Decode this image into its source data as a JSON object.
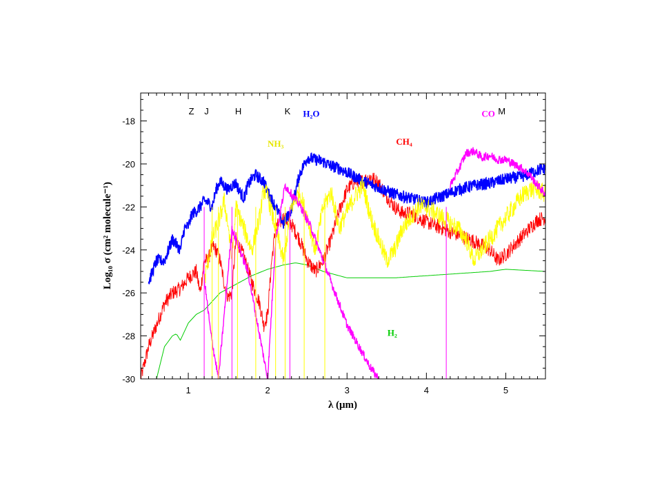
{
  "chart_data": {
    "type": "line",
    "title": "",
    "xlabel": "λ (μm)",
    "ylabel": "Log₁₀ σ (cm² molecule⁻¹)",
    "xlim": [
      0.4,
      5.5
    ],
    "ylim": [
      -30,
      -16.7
    ],
    "grid": false,
    "legend": "none",
    "x_ticks": [
      1,
      2,
      3,
      4,
      5
    ],
    "y_ticks": [
      -30,
      -28,
      -26,
      -24,
      -22,
      -20,
      -18
    ],
    "band_labels": [
      {
        "text": "Z",
        "x": 1.04
      },
      {
        "text": "J",
        "x": 1.23
      },
      {
        "text": "H",
        "x": 1.63
      },
      {
        "text": "K",
        "x": 2.25
      },
      {
        "text": "M",
        "x": 4.95
      }
    ],
    "series": [
      {
        "name": "H₂O",
        "color": "#0000ff",
        "label_x": 2.55,
        "label_y": -17.8,
        "x": [
          0.5,
          0.6,
          0.7,
          0.8,
          0.9,
          0.95,
          1.0,
          1.05,
          1.1,
          1.15,
          1.2,
          1.25,
          1.3,
          1.35,
          1.4,
          1.45,
          1.5,
          1.55,
          1.6,
          1.65,
          1.7,
          1.75,
          1.8,
          1.85,
          1.9,
          1.95,
          2.0,
          2.1,
          2.2,
          2.3,
          2.4,
          2.5,
          2.6,
          2.7,
          2.8,
          2.9,
          3.0,
          3.2,
          3.4,
          3.6,
          3.8,
          4.0,
          4.2,
          4.4,
          4.6,
          4.8,
          5.0,
          5.2,
          5.4,
          5.5
        ],
        "y": [
          -25.5,
          -24.5,
          -24.5,
          -23.5,
          -24.0,
          -23.0,
          -22.9,
          -22.3,
          -22.2,
          -22.0,
          -21.7,
          -21.8,
          -22.0,
          -21.2,
          -20.8,
          -21.0,
          -21.2,
          -21.0,
          -20.9,
          -21.3,
          -21.6,
          -21.0,
          -20.7,
          -20.5,
          -20.7,
          -20.8,
          -21.3,
          -22.0,
          -22.8,
          -22.1,
          -20.5,
          -19.7,
          -19.8,
          -19.9,
          -20.1,
          -20.2,
          -20.4,
          -20.8,
          -21.1,
          -21.4,
          -21.6,
          -21.8,
          -21.5,
          -21.2,
          -21.0,
          -20.9,
          -20.7,
          -20.6,
          -20.3,
          -20.2
        ]
      },
      {
        "name": "CH₄",
        "color": "#ff0000",
        "label_x": 3.72,
        "label_y": -19.1,
        "x": [
          0.4,
          0.5,
          0.6,
          0.7,
          0.8,
          0.9,
          1.0,
          1.1,
          1.15,
          1.2,
          1.25,
          1.3,
          1.35,
          1.4,
          1.45,
          1.5,
          1.55,
          1.6,
          1.7,
          1.8,
          1.9,
          1.95,
          2.0,
          2.05,
          2.1,
          2.2,
          2.3,
          2.4,
          2.5,
          2.6,
          2.7,
          2.8,
          2.9,
          3.0,
          3.1,
          3.2,
          3.3,
          3.4,
          3.5,
          3.6,
          3.7,
          3.8,
          3.9,
          4.0,
          4.2,
          4.4,
          4.6,
          4.7,
          4.8,
          4.9,
          5.0,
          5.2,
          5.4,
          5.5
        ],
        "y": [
          -30.0,
          -28.5,
          -27.5,
          -26.5,
          -26.0,
          -25.8,
          -25.3,
          -25.0,
          -26.0,
          -24.5,
          -24.5,
          -23.8,
          -24.0,
          -24.5,
          -25.5,
          -26.2,
          -26.0,
          -23.5,
          -24.3,
          -25.5,
          -26.5,
          -27.5,
          -27.0,
          -24.5,
          -23.0,
          -22.5,
          -22.8,
          -23.5,
          -24.5,
          -25.0,
          -24.5,
          -23.5,
          -22.2,
          -21.2,
          -20.8,
          -20.8,
          -20.6,
          -20.9,
          -21.5,
          -22.0,
          -22.3,
          -22.3,
          -22.5,
          -22.7,
          -23.0,
          -23.3,
          -23.6,
          -23.8,
          -24.0,
          -24.5,
          -24.2,
          -23.4,
          -22.6,
          -22.5
        ]
      },
      {
        "name": "NH₃",
        "color": "#ffff00",
        "label_x": 2.1,
        "label_y": -19.2,
        "x": [
          1.2,
          1.3,
          1.4,
          1.45,
          1.5,
          1.55,
          1.6,
          1.7,
          1.8,
          1.9,
          1.95,
          2.0,
          2.1,
          2.2,
          2.3,
          2.4,
          2.5,
          2.6,
          2.7,
          2.8,
          2.9,
          3.0,
          3.1,
          3.2,
          3.3,
          3.4,
          3.5,
          3.6,
          3.7,
          3.8,
          3.9,
          4.0,
          4.2,
          4.4,
          4.5,
          4.6,
          4.7,
          4.8,
          4.9,
          5.0,
          5.1,
          5.2,
          5.3,
          5.4,
          5.5
        ],
        "y": [
          -25.5,
          -23.5,
          -22.5,
          -21.7,
          -22.8,
          -24.5,
          -22.0,
          -23.0,
          -24.0,
          -22.5,
          -21.2,
          -21.5,
          -23.0,
          -24.5,
          -22.0,
          -21.3,
          -22.5,
          -24.0,
          -22.0,
          -21.3,
          -23.0,
          -22.2,
          -21.5,
          -21.0,
          -22.5,
          -23.5,
          -24.5,
          -24.0,
          -23.0,
          -22.5,
          -22.0,
          -22.0,
          -22.5,
          -23.0,
          -23.5,
          -24.5,
          -24.0,
          -23.5,
          -23.0,
          -22.5,
          -22.0,
          -21.5,
          -21.2,
          -21.2,
          -21.4
        ]
      },
      {
        "name": "CO",
        "color": "#ff00ff",
        "label_x": 4.78,
        "label_y": -17.8,
        "x": [
          1.19,
          1.28,
          1.38,
          1.55,
          1.75,
          1.9,
          2.0,
          2.1,
          2.22,
          2.32,
          2.42,
          2.55,
          2.7,
          2.85,
          3.0,
          3.15,
          3.3,
          3.4,
          4.3,
          4.4,
          4.5,
          4.6,
          4.7,
          4.8,
          4.9,
          5.0,
          5.1,
          5.2,
          5.3,
          5.4,
          5.5
        ],
        "y": [
          -25.0,
          -27.8,
          -30.0,
          -23.0,
          -25.0,
          -28.0,
          -30.0,
          -23.5,
          -21.0,
          -21.5,
          -22.0,
          -23.0,
          -24.5,
          -26.0,
          -27.5,
          -28.5,
          -29.5,
          -30.0,
          -21.0,
          -20.3,
          -19.5,
          -19.4,
          -19.7,
          -19.6,
          -19.8,
          -19.8,
          -20.0,
          -20.2,
          -20.5,
          -21.0,
          -21.4
        ]
      },
      {
        "name": "H₂",
        "color": "#00cc00",
        "label_x": 3.57,
        "label_y": -28.0,
        "x": [
          0.6,
          0.7,
          0.8,
          0.85,
          0.9,
          1.0,
          1.1,
          1.2,
          1.3,
          1.4,
          1.5,
          1.6,
          1.8,
          2.0,
          2.2,
          2.35,
          2.5,
          2.7,
          2.9,
          3.0,
          3.2,
          3.4,
          3.6,
          4.0,
          4.4,
          4.8,
          5.0,
          5.5
        ],
        "y": [
          -30.0,
          -28.5,
          -28.0,
          -27.9,
          -28.2,
          -27.4,
          -27.0,
          -26.8,
          -26.4,
          -26.0,
          -25.8,
          -25.6,
          -25.2,
          -24.9,
          -24.7,
          -24.6,
          -24.7,
          -25.0,
          -25.2,
          -25.3,
          -25.3,
          -25.3,
          -25.3,
          -25.2,
          -25.1,
          -25.0,
          -24.9,
          -25.0
        ]
      }
    ]
  }
}
